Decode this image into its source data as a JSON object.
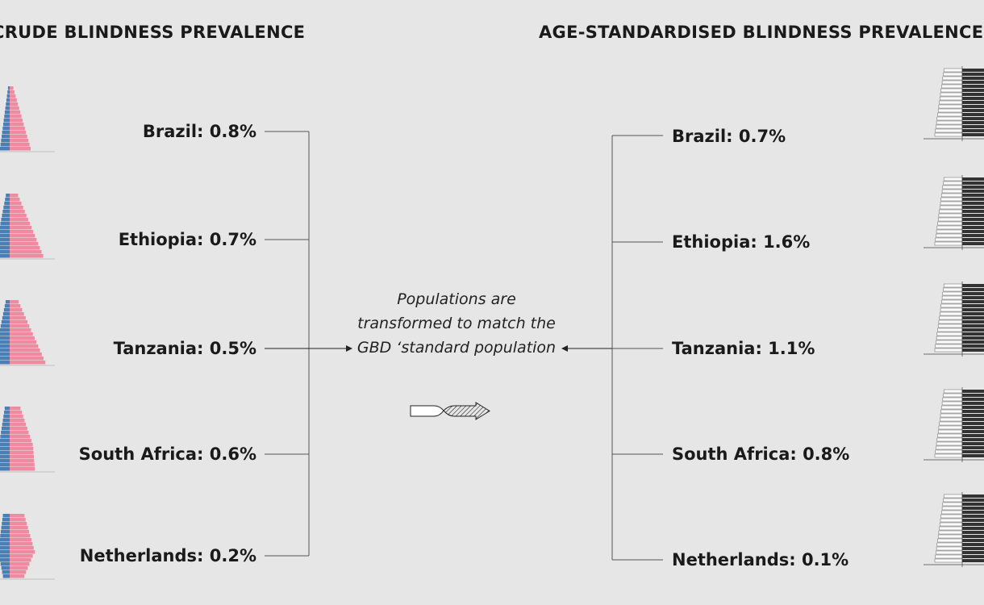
{
  "headings": {
    "left": "CRUDE BLINDNESS PREVALENCE",
    "right": "AGE-STANDARDISED BLINDNESS PREVALENCE"
  },
  "crude": [
    {
      "country": "Brazil",
      "label": "Brazil: 0.8%"
    },
    {
      "country": "Ethiopia",
      "label": "Ethiopia: 0.7%"
    },
    {
      "country": "Tanzania",
      "label": "Tanzania: 0.5%"
    },
    {
      "country": "South Africa",
      "label": "South Africa: 0.6%"
    },
    {
      "country": "Netherlands",
      "label": "Netherlands: 0.2%"
    }
  ],
  "age_standardised": [
    {
      "country": "Brazil",
      "label": "Brazil: 0.7%"
    },
    {
      "country": "Ethiopia",
      "label": "Ethiopia: 1.6%"
    },
    {
      "country": "Tanzania",
      "label": "Tanzania: 1.1%"
    },
    {
      "country": "South Africa",
      "label": "South Africa: 0.8%"
    },
    {
      "country": "Netherlands",
      "label": "Netherlands: 0.1%"
    }
  ],
  "center": {
    "text": "Populations are transformed to match the GBD ‘standard population"
  },
  "colors": {
    "male": "#4a7fb5",
    "female": "#f08aa0",
    "line": "#555555",
    "standard_bar": "#333333"
  }
}
